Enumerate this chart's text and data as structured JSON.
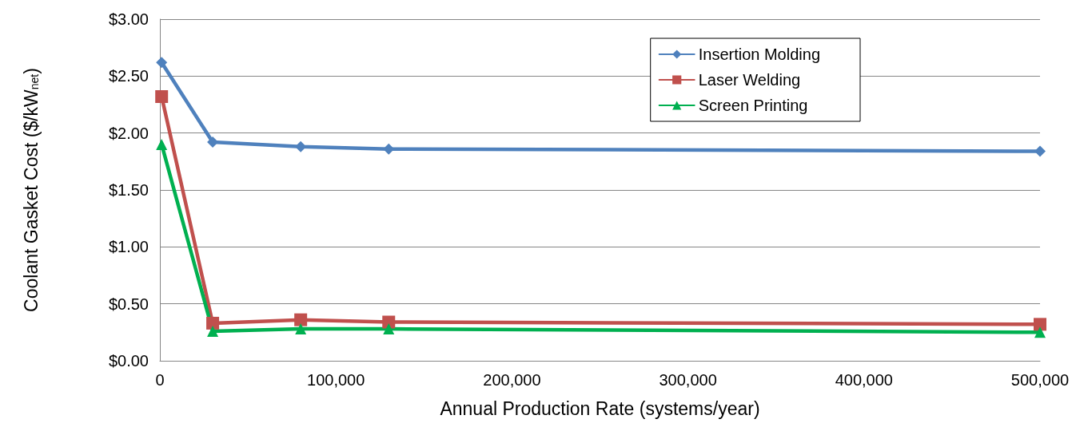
{
  "chart_data": {
    "type": "line",
    "xlabel": "Annual Production Rate (systems/year)",
    "ylabel": "Coolant Gasket Cost ($/kW$_{net}$)",
    "x": [
      1000,
      30000,
      80000,
      130000,
      500000
    ],
    "series": [
      {
        "name": "Insertion Molding",
        "color": "#4f81bd",
        "marker": "diamond",
        "values": [
          2.62,
          1.92,
          1.88,
          1.86,
          1.84
        ]
      },
      {
        "name": "Laser Welding",
        "color": "#c0504d",
        "marker": "square",
        "values": [
          2.32,
          0.33,
          0.36,
          0.34,
          0.32
        ]
      },
      {
        "name": "Screen Printing",
        "color": "#00b050",
        "marker": "triangle",
        "values": [
          1.9,
          0.26,
          0.28,
          0.28,
          0.25
        ]
      }
    ],
    "xlim": [
      0,
      500000
    ],
    "xticks": [
      {
        "value": 0,
        "label": "0"
      },
      {
        "value": 100000,
        "label": "100,000"
      },
      {
        "value": 200000,
        "label": "200,000"
      },
      {
        "value": 300000,
        "label": "300,000"
      },
      {
        "value": 400000,
        "label": "400,000"
      },
      {
        "value": 500000,
        "label": "500,000"
      }
    ],
    "ylim": [
      0,
      3
    ],
    "yticks": [
      {
        "value": 0,
        "label": "$0.00"
      },
      {
        "value": 0.5,
        "label": "$0.50"
      },
      {
        "value": 1,
        "label": "$1.00"
      },
      {
        "value": 1.5,
        "label": "$1.50"
      },
      {
        "value": 2,
        "label": "$2.00"
      },
      {
        "value": 2.5,
        "label": "$2.50"
      },
      {
        "value": 3,
        "label": "$3.00"
      }
    ],
    "grid": "y",
    "legend": "top right",
    "line_style": "solid"
  }
}
